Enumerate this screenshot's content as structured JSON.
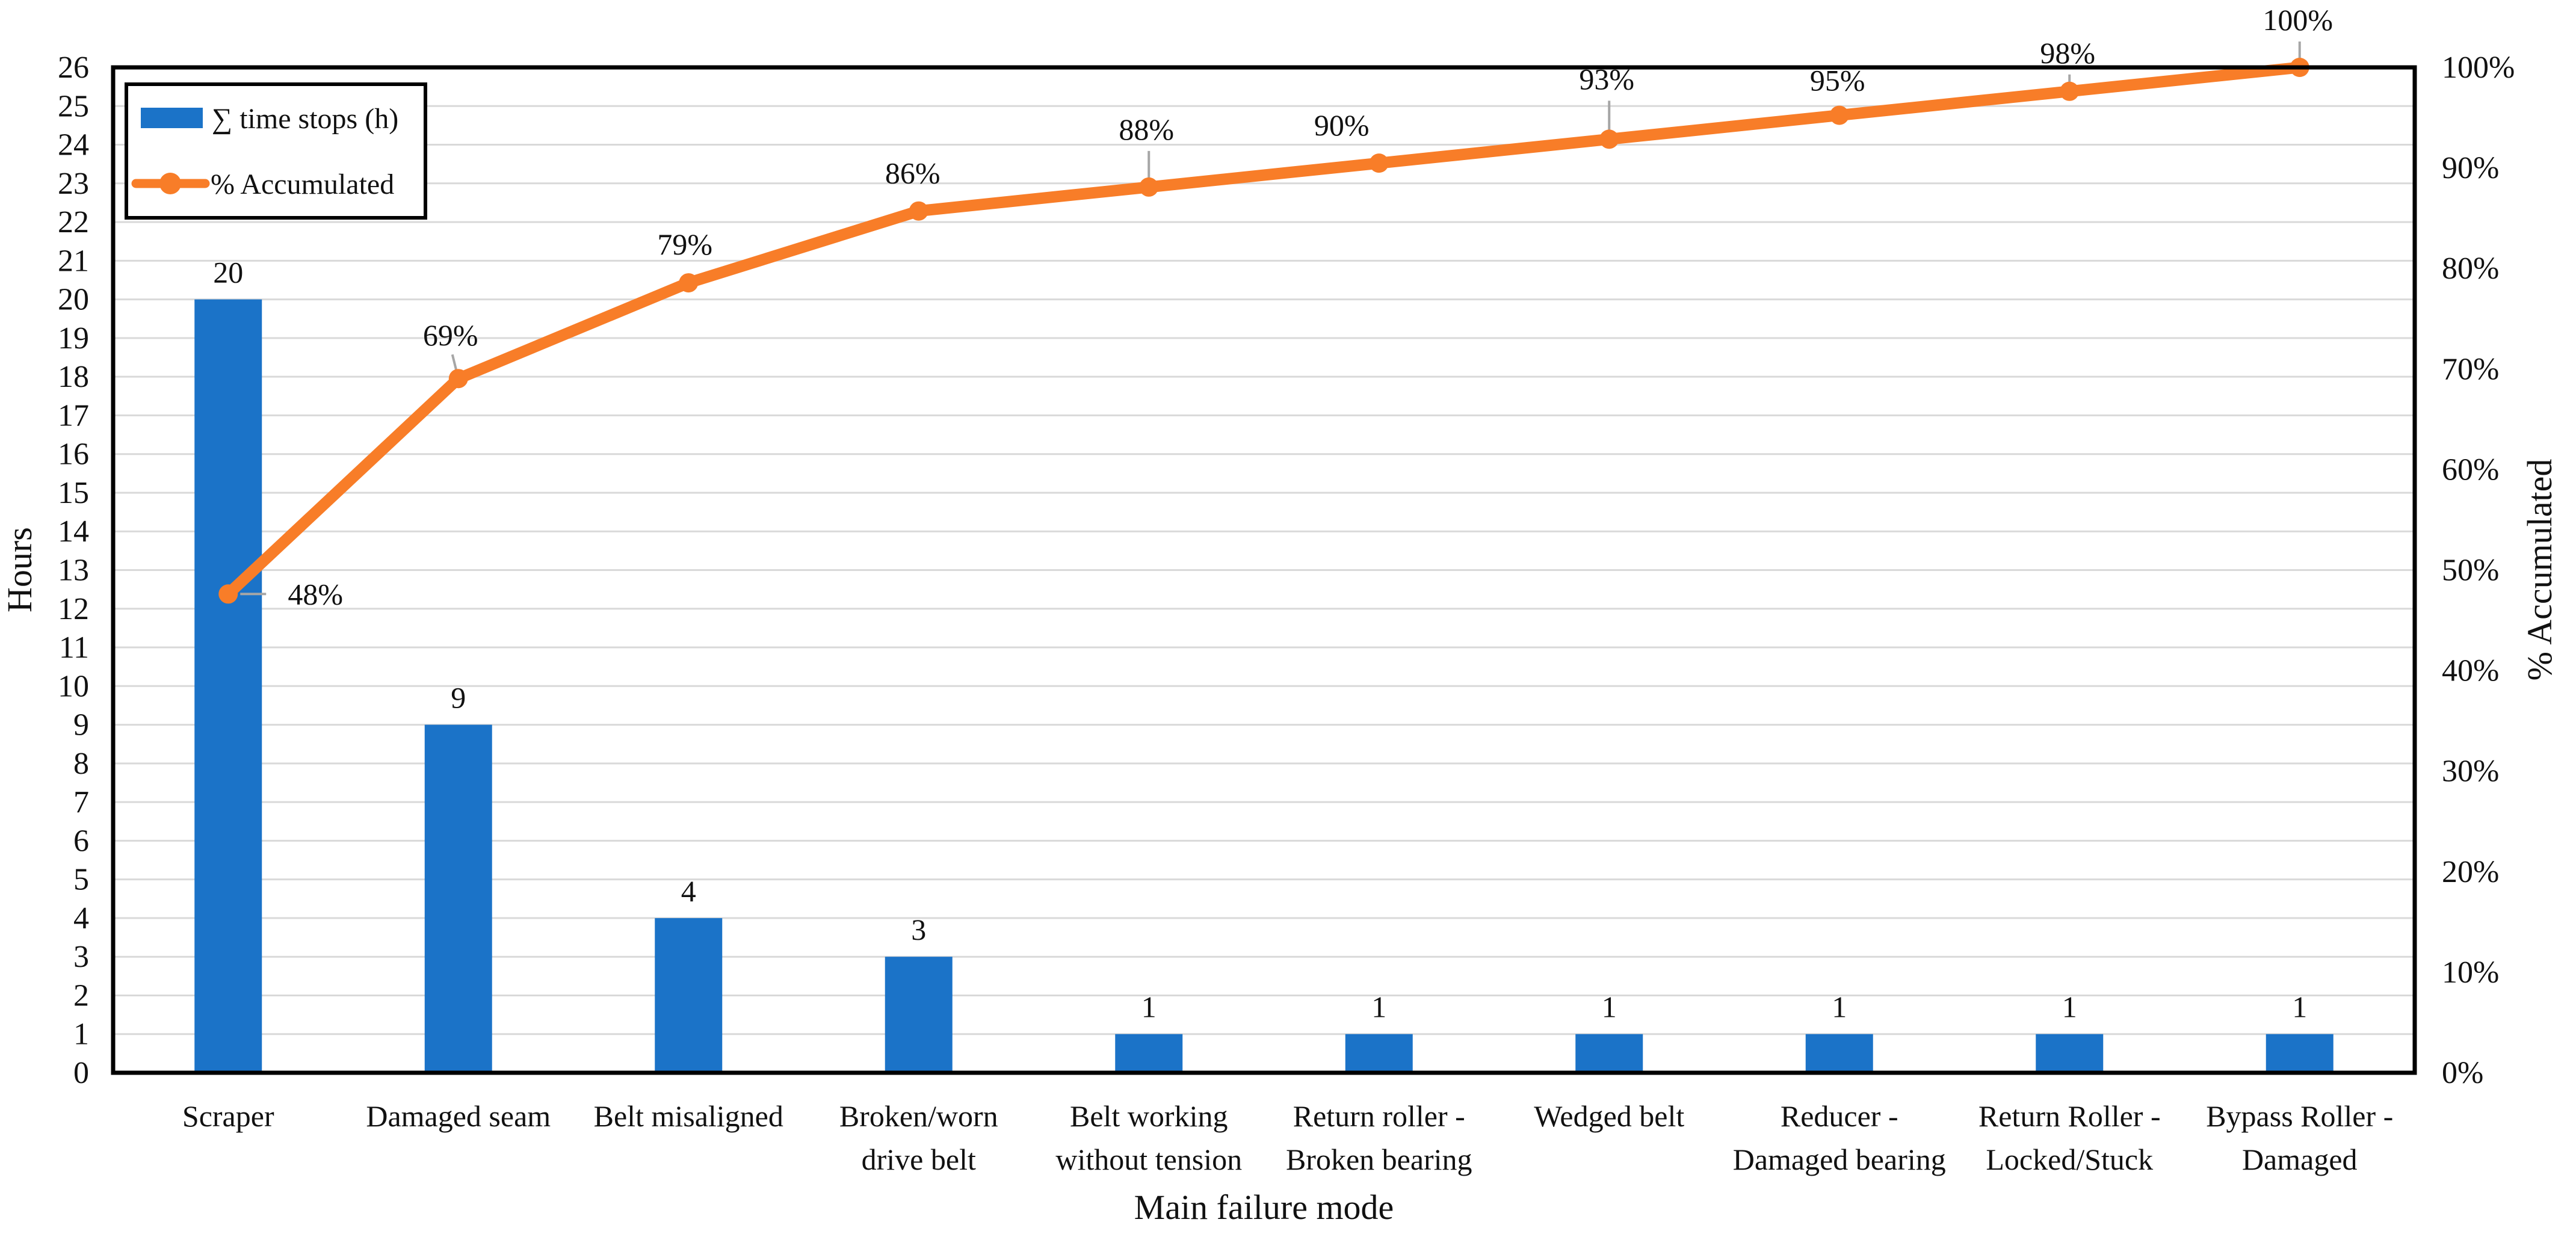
{
  "figure": {
    "description": "Pareto chart of conveyor belt main failure modes",
    "background": "#FFFFFF",
    "text_color": "#111111",
    "border_color": "#000000",
    "grid_color": "#D9D9D9",
    "leader_color": "#A6A6A6"
  },
  "chart_data": {
    "type": "bar",
    "subtype": "pareto (bar + cumulative line, dual axis)",
    "categories": [
      [
        "Scraper"
      ],
      [
        "Damaged seam"
      ],
      [
        "Belt misaligned"
      ],
      [
        "Broken/worn",
        "drive belt"
      ],
      [
        "Belt working",
        "without tension"
      ],
      [
        "Return roller -",
        "Broken bearing"
      ],
      [
        "Wedged belt"
      ],
      [
        "Reducer -",
        "Damaged bearing"
      ],
      [
        "Return Roller -",
        "Locked/Stuck"
      ],
      [
        "Bypass Roller -",
        "Damaged"
      ]
    ],
    "series": [
      {
        "name": "∑ time stops (h)",
        "type": "bar",
        "color": "#1B73C8",
        "values": [
          20,
          9,
          4,
          3,
          1,
          1,
          1,
          1,
          1,
          1
        ],
        "value_labels": [
          "20",
          "9",
          "4",
          "3",
          "1",
          "1",
          "1",
          "1",
          "1",
          "1"
        ]
      },
      {
        "name": "% Accumulated",
        "type": "line",
        "color": "#F87D28",
        "marker": "circle",
        "values_pct": [
          47.619,
          69.048,
          78.571,
          85.714,
          88.095,
          90.476,
          92.857,
          95.238,
          97.619,
          100
        ],
        "point_labels": [
          "48%",
          "69%",
          "79%",
          "86%",
          "88%",
          "90%",
          "93%",
          "95%",
          "98%",
          "100%"
        ]
      }
    ],
    "x_axis": {
      "title": "Main failure mode"
    },
    "y_axis_left": {
      "title": "Hours",
      "min": 0,
      "max": 26,
      "step": 1,
      "tick_labels": [
        "0",
        "1",
        "2",
        "3",
        "4",
        "5",
        "6",
        "7",
        "8",
        "9",
        "10",
        "11",
        "12",
        "13",
        "14",
        "15",
        "16",
        "17",
        "18",
        "19",
        "20",
        "21",
        "22",
        "23",
        "24",
        "25",
        "26"
      ]
    },
    "y_axis_right": {
      "title": "% Accumulated",
      "min": 0,
      "max": 100,
      "step": 10,
      "tick_labels": [
        "0%",
        "10%",
        "20%",
        "30%",
        "40%",
        "50%",
        "60%",
        "70%",
        "80%",
        "90%",
        "100%"
      ]
    },
    "legend": {
      "position": "top-left-inside",
      "items": [
        {
          "label": "∑ time stops (h)",
          "swatch": "bar",
          "color": "#1B73C8"
        },
        {
          "label": "% Accumulated",
          "swatch": "line-marker",
          "color": "#F87D28"
        }
      ]
    },
    "grid": {
      "horizontal": true,
      "vertical": false
    }
  }
}
